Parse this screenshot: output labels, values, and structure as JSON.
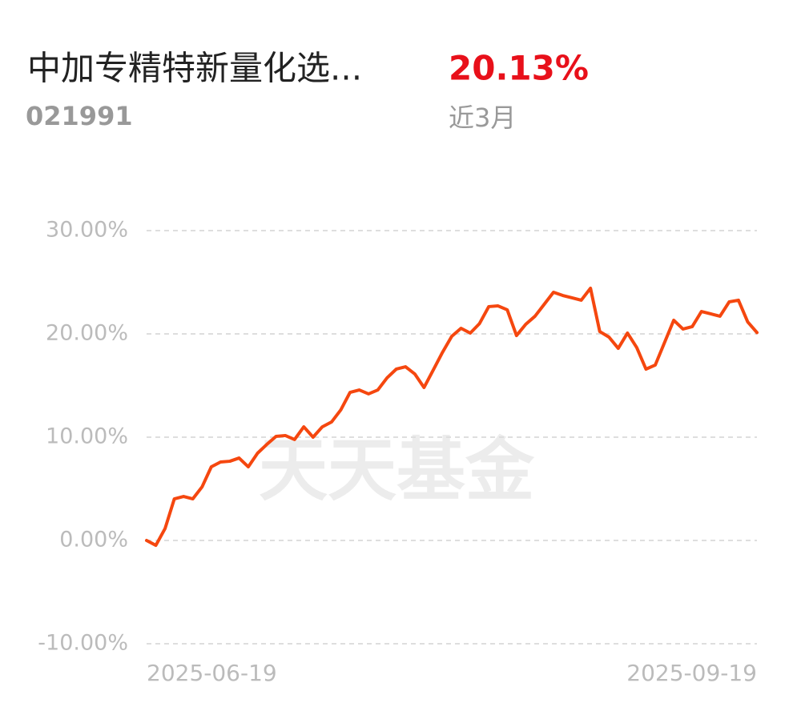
{
  "header": {
    "title": "中加专精特新量化选...",
    "code": "021991",
    "return": "20.13%",
    "period": "近3月"
  },
  "chart_data": {
    "type": "line",
    "watermark": "天天基金",
    "categories": [
      "2025-06-19",
      null,
      null,
      null,
      null,
      null,
      null,
      null,
      null,
      null,
      null,
      null,
      null,
      null,
      null,
      null,
      null,
      null,
      null,
      null,
      null,
      null,
      null,
      null,
      null,
      null,
      null,
      null,
      null,
      null,
      null,
      null,
      null,
      null,
      null,
      null,
      null,
      null,
      null,
      null,
      null,
      null,
      null,
      null,
      null,
      null,
      null,
      null,
      null,
      null,
      null,
      null,
      null,
      null,
      null,
      null,
      null,
      null,
      null,
      null,
      null,
      null,
      null,
      null,
      null,
      null,
      "2025-09-19"
    ],
    "values": [
      0,
      -0.47,
      1.16,
      4.03,
      4.26,
      4.03,
      5.19,
      7.13,
      7.6,
      7.67,
      7.98,
      7.13,
      8.45,
      9.3,
      10.08,
      10.16,
      9.77,
      11.0,
      10.0,
      11.0,
      11.47,
      12.64,
      14.34,
      14.57,
      14.19,
      14.57,
      15.74,
      16.59,
      16.82,
      16.12,
      14.81,
      16.51,
      18.22,
      19.77,
      20.54,
      20.08,
      21.0,
      22.64,
      22.71,
      22.33,
      19.84,
      20.93,
      21.71,
      22.87,
      24.03,
      23.72,
      23.49,
      23.26,
      24.42,
      20.23,
      19.69,
      18.6,
      20.08,
      18.68,
      16.59,
      16.98,
      19.15,
      21.32,
      20.47,
      20.7,
      22.17,
      21.94,
      21.71,
      23.1,
      23.26,
      21.16,
      20.13
    ],
    "color": "#f5470f",
    "ylim": [
      -10,
      30
    ],
    "yticks": [
      {
        "value": -10,
        "label": "-10.00%"
      },
      {
        "value": 0,
        "label": "0.00%"
      },
      {
        "value": 10,
        "label": "10.00%"
      },
      {
        "value": 20,
        "label": "20.00%"
      },
      {
        "value": 30,
        "label": "30.00%"
      }
    ],
    "grid": true
  }
}
